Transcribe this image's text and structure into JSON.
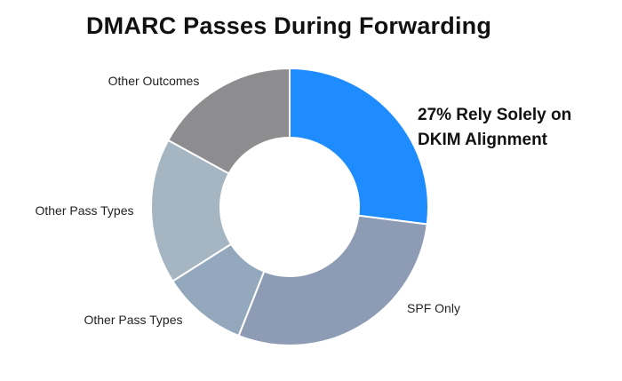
{
  "chart_data": {
    "type": "pie",
    "title": "DMARC Passes During Forwarding",
    "callout": [
      "27% Rely Solely on",
      "DKIM Alignment"
    ],
    "slices": [
      {
        "name": "DKIM Only",
        "label": "",
        "value": 27,
        "color": "#1e8cff"
      },
      {
        "name": "SPF Only",
        "label": "SPF Only",
        "value": 29,
        "color": "#8d9bb4"
      },
      {
        "name": "Other Pass Types A",
        "label": "Other Pass Types",
        "value": 10,
        "color": "#94a8bd"
      },
      {
        "name": "Other Pass Types B",
        "label": "Other Pass Types",
        "value": 17,
        "color": "#a5b5c2"
      },
      {
        "name": "Other Outcomes",
        "label": "Other Outcomes",
        "value": 17,
        "color": "#8d8c8f"
      }
    ]
  }
}
